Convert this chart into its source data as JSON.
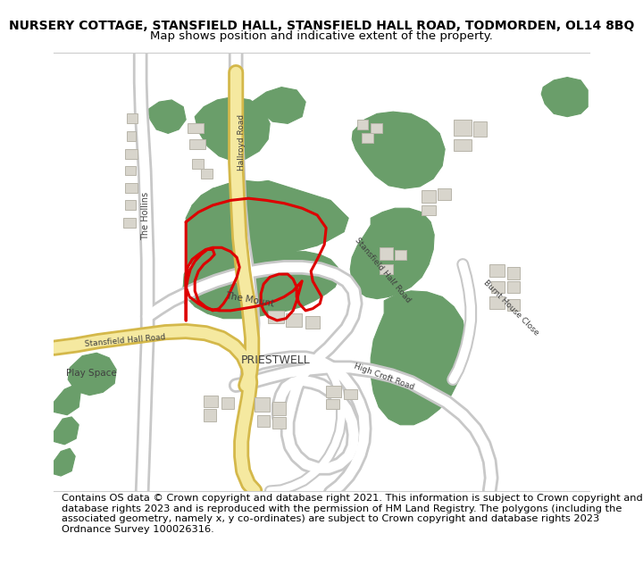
{
  "title_line1": "NURSERY COTTAGE, STANSFIELD HALL, STANSFIELD HALL ROAD, TODMORDEN, OL14 8BQ",
  "title_line2": "Map shows position and indicative extent of the property.",
  "footer_text": "Contains OS data © Crown copyright and database right 2021. This information is subject to Crown copyright and database rights 2023 and is reproduced with the permission of HM Land Registry. The polygons (including the associated geometry, namely x, y co-ordinates) are subject to Crown copyright and database rights 2023 Ordnance Survey 100026316.",
  "bg_color": "#f7f6f1",
  "road_fill": "#ffffff",
  "road_outline": "#c8c8c8",
  "yellow_road_fill": "#f5e9a0",
  "yellow_road_outline": "#d4b84a",
  "green_color": "#6a9e6a",
  "building_color": "#d8d5cc",
  "building_outline": "#b8b5aa",
  "red_color": "#dd0000",
  "label_color": "#404040",
  "title_fontsize": 10.0,
  "subtitle_fontsize": 9.5,
  "footer_fontsize": 8.2
}
